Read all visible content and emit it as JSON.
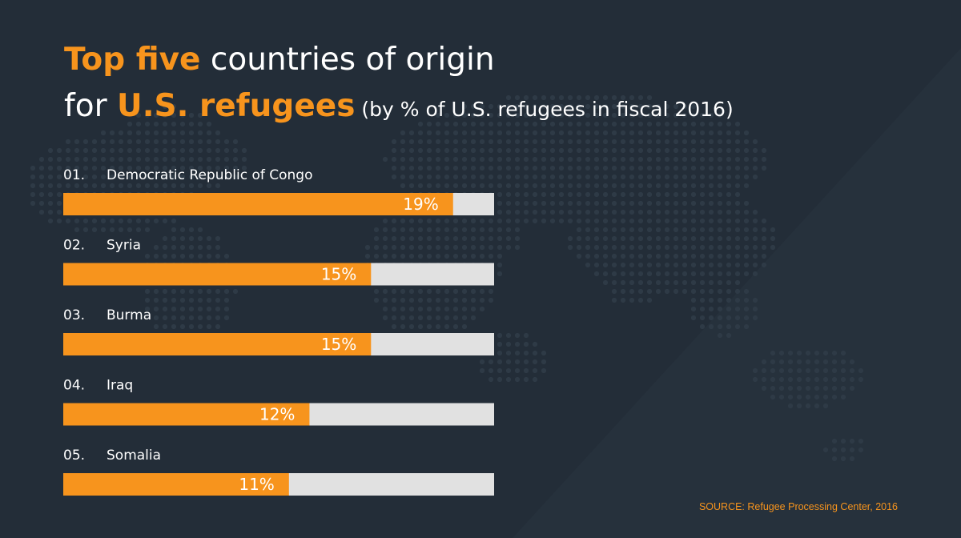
{
  "title": {
    "line1_highlight": "Top five",
    "line1_rest": " countries of origin",
    "line2_prefix": "for ",
    "line2_highlight": "U.S. refugees",
    "line2_subtitle": " (by % of U.S. refugees in fiscal 2016)"
  },
  "colors": {
    "background": "#232d38",
    "accent": "#f7941d",
    "track": "#e1e1e1",
    "text": "#ffffff",
    "map_dots": "#2e3a46"
  },
  "chart_data": {
    "type": "bar",
    "orientation": "horizontal",
    "title": "Top five countries of origin for U.S. refugees",
    "subtitle": "(by % of U.S. refugees in fiscal 2016)",
    "ranks": [
      "01.",
      "02.",
      "03.",
      "04.",
      "05."
    ],
    "categories": [
      "Democratic Republic of Congo",
      "Syria",
      "Burma",
      "Iraq",
      "Somalia"
    ],
    "values": [
      19,
      15,
      15,
      12,
      11
    ],
    "value_labels": [
      "19%",
      "15%",
      "15%",
      "12%",
      "11%"
    ],
    "unit": "%",
    "xlim": [
      0,
      21
    ]
  },
  "source": "SOURCE: Refugee Processing Center, 2016"
}
